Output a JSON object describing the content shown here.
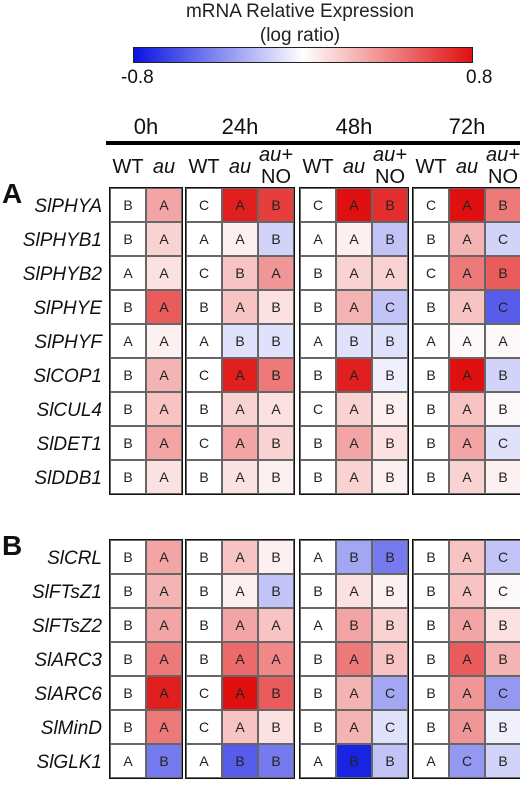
{
  "chart_data": {
    "type": "heatmap",
    "legend": {
      "title_line1": "mRNA Relative Expression",
      "title_line2": "(log ratio)",
      "min_label": "-0.8",
      "max_label": "0.8",
      "range": [
        -0.8,
        0.8
      ],
      "colors": {
        "low": "#0a14e0",
        "mid": "#ffffff",
        "high": "#e01010"
      }
    },
    "timepoints": [
      {
        "label": "0h",
        "columns": [
          "WT",
          "au"
        ]
      },
      {
        "label": "24h",
        "columns": [
          "WT",
          "au",
          "au+ NO"
        ]
      },
      {
        "label": "48h",
        "columns": [
          "WT",
          "au",
          "au+ NO"
        ]
      },
      {
        "label": "72h",
        "columns": [
          "WT",
          "au",
          "au+ NO"
        ]
      }
    ],
    "panels": [
      {
        "label": "A",
        "rows": [
          {
            "gene": "SlPHYA",
            "groups": [
              [
                [
                  0,
                  "B"
                ],
                [
                  0.3,
                  "A"
                ]
              ],
              [
                [
                  0,
                  "C"
                ],
                [
                  0.75,
                  "A"
                ],
                [
                  0.65,
                  "B"
                ]
              ],
              [
                [
                  0,
                  "C"
                ],
                [
                  0.8,
                  "A"
                ],
                [
                  0.7,
                  "B"
                ]
              ],
              [
                [
                  0,
                  "C"
                ],
                [
                  0.8,
                  "A"
                ],
                [
                  0.45,
                  "B"
                ]
              ]
            ]
          },
          {
            "gene": "SlPHYB1",
            "groups": [
              [
                [
                  0,
                  "B"
                ],
                [
                  0.15,
                  "A"
                ]
              ],
              [
                [
                  0,
                  "A"
                ],
                [
                  0.05,
                  "A"
                ],
                [
                  -0.15,
                  "B"
                ]
              ],
              [
                [
                  0,
                  "A"
                ],
                [
                  0.05,
                  "A"
                ],
                [
                  -0.2,
                  "B"
                ]
              ],
              [
                [
                  0,
                  "B"
                ],
                [
                  0.25,
                  "A"
                ],
                [
                  -0.15,
                  "C"
                ]
              ]
            ]
          },
          {
            "gene": "SlPHYB2",
            "groups": [
              [
                [
                  0,
                  "A"
                ],
                [
                  0.1,
                  "A"
                ]
              ],
              [
                [
                  0,
                  "C"
                ],
                [
                  0.2,
                  "B"
                ],
                [
                  0.35,
                  "A"
                ]
              ],
              [
                [
                  0,
                  "B"
                ],
                [
                  0.15,
                  "A"
                ],
                [
                  0.15,
                  "A"
                ]
              ],
              [
                [
                  0,
                  "C"
                ],
                [
                  0.45,
                  "A"
                ],
                [
                  0.55,
                  "B"
                ]
              ]
            ]
          },
          {
            "gene": "SlPHYE",
            "groups": [
              [
                [
                  0,
                  "B"
                ],
                [
                  0.55,
                  "A"
                ]
              ],
              [
                [
                  0,
                  "B"
                ],
                [
                  0.2,
                  "A"
                ],
                [
                  0.1,
                  "B"
                ]
              ],
              [
                [
                  0,
                  "B"
                ],
                [
                  0.25,
                  "A"
                ],
                [
                  -0.2,
                  "C"
                ]
              ],
              [
                [
                  0,
                  "B"
                ],
                [
                  0.2,
                  "A"
                ],
                [
                  -0.55,
                  "C"
                ]
              ]
            ]
          },
          {
            "gene": "SlPHYF",
            "groups": [
              [
                [
                  0,
                  "A"
                ],
                [
                  0.05,
                  "A"
                ]
              ],
              [
                [
                  0,
                  "A"
                ],
                [
                  -0.1,
                  "B"
                ],
                [
                  -0.1,
                  "B"
                ]
              ],
              [
                [
                  0,
                  "A"
                ],
                [
                  -0.1,
                  "B"
                ],
                [
                  -0.1,
                  "B"
                ]
              ],
              [
                [
                  0,
                  "A"
                ],
                [
                  0.02,
                  "A"
                ],
                [
                  0.02,
                  "A"
                ]
              ]
            ]
          },
          {
            "gene": "SlCOP1",
            "groups": [
              [
                [
                  0,
                  "B"
                ],
                [
                  0.25,
                  "A"
                ]
              ],
              [
                [
                  0,
                  "C"
                ],
                [
                  0.75,
                  "A"
                ],
                [
                  0.45,
                  "B"
                ]
              ],
              [
                [
                  0,
                  "B"
                ],
                [
                  0.75,
                  "A"
                ],
                [
                  -0.05,
                  "B"
                ]
              ],
              [
                [
                  0,
                  "B"
                ],
                [
                  0.8,
                  "A"
                ],
                [
                  -0.15,
                  "B"
                ]
              ]
            ]
          },
          {
            "gene": "SlCUL4",
            "groups": [
              [
                [
                  0,
                  "B"
                ],
                [
                  0.2,
                  "A"
                ]
              ],
              [
                [
                  0,
                  "B"
                ],
                [
                  0.15,
                  "A"
                ],
                [
                  0.1,
                  "A"
                ]
              ],
              [
                [
                  0,
                  "C"
                ],
                [
                  0.15,
                  "A"
                ],
                [
                  0.05,
                  "B"
                ]
              ],
              [
                [
                  0,
                  "B"
                ],
                [
                  0.2,
                  "A"
                ],
                [
                  0.02,
                  "B"
                ]
              ]
            ]
          },
          {
            "gene": "SlDET1",
            "groups": [
              [
                [
                  0,
                  "B"
                ],
                [
                  0.3,
                  "A"
                ]
              ],
              [
                [
                  0,
                  "C"
                ],
                [
                  0.3,
                  "A"
                ],
                [
                  0.15,
                  "B"
                ]
              ],
              [
                [
                  0,
                  "B"
                ],
                [
                  0.3,
                  "A"
                ],
                [
                  0.1,
                  "B"
                ]
              ],
              [
                [
                  0,
                  "B"
                ],
                [
                  0.3,
                  "A"
                ],
                [
                  -0.1,
                  "C"
                ]
              ]
            ]
          },
          {
            "gene": "SlDDB1",
            "groups": [
              [
                [
                  0,
                  "B"
                ],
                [
                  0.1,
                  "A"
                ]
              ],
              [
                [
                  0,
                  "B"
                ],
                [
                  0.1,
                  "A"
                ],
                [
                  0.05,
                  "B"
                ]
              ],
              [
                [
                  0,
                  "B"
                ],
                [
                  0.15,
                  "A"
                ],
                [
                  0.05,
                  "B"
                ]
              ],
              [
                [
                  0,
                  "B"
                ],
                [
                  0.15,
                  "A"
                ],
                [
                  0.05,
                  "B"
                ]
              ]
            ]
          }
        ]
      },
      {
        "label": "B",
        "rows": [
          {
            "gene": "SlCRL",
            "groups": [
              [
                [
                  0,
                  "B"
                ],
                [
                  0.3,
                  "A"
                ]
              ],
              [
                [
                  0,
                  "B"
                ],
                [
                  0.2,
                  "A"
                ],
                [
                  0.05,
                  "B"
                ]
              ],
              [
                [
                  0,
                  "A"
                ],
                [
                  -0.3,
                  "B"
                ],
                [
                  -0.45,
                  "B"
                ]
              ],
              [
                [
                  0,
                  "B"
                ],
                [
                  0.2,
                  "A"
                ],
                [
                  -0.2,
                  "C"
                ]
              ]
            ]
          },
          {
            "gene": "SlFTsZ1",
            "groups": [
              [
                [
                  0,
                  "B"
                ],
                [
                  0.25,
                  "A"
                ]
              ],
              [
                [
                  0,
                  "B"
                ],
                [
                  0.05,
                  "A"
                ],
                [
                  -0.2,
                  "B"
                ]
              ],
              [
                [
                  0,
                  "B"
                ],
                [
                  0.1,
                  "A"
                ],
                [
                  0.05,
                  "B"
                ]
              ],
              [
                [
                  0,
                  "B"
                ],
                [
                  0.2,
                  "A"
                ],
                [
                  0.02,
                  "C"
                ]
              ]
            ]
          },
          {
            "gene": "SlFTsZ2",
            "groups": [
              [
                [
                  0,
                  "B"
                ],
                [
                  0.3,
                  "A"
                ]
              ],
              [
                [
                  0,
                  "B"
                ],
                [
                  0.3,
                  "A"
                ],
                [
                  0.2,
                  "A"
                ]
              ],
              [
                [
                  0,
                  "A"
                ],
                [
                  0.3,
                  "B"
                ],
                [
                  0.15,
                  "B"
                ]
              ],
              [
                [
                  0,
                  "B"
                ],
                [
                  0.3,
                  "A"
                ],
                [
                  0.1,
                  "B"
                ]
              ]
            ]
          },
          {
            "gene": "SlARC3",
            "groups": [
              [
                [
                  0,
                  "B"
                ],
                [
                  0.45,
                  "A"
                ]
              ],
              [
                [
                  0,
                  "B"
                ],
                [
                  0.5,
                  "A"
                ],
                [
                  0.4,
                  "A"
                ]
              ],
              [
                [
                  0,
                  "B"
                ],
                [
                  0.45,
                  "A"
                ],
                [
                  0.2,
                  "B"
                ]
              ],
              [
                [
                  0,
                  "B"
                ],
                [
                  0.55,
                  "A"
                ],
                [
                  0.25,
                  "B"
                ]
              ]
            ]
          },
          {
            "gene": "SlARC6",
            "groups": [
              [
                [
                  0,
                  "B"
                ],
                [
                  0.75,
                  "A"
                ]
              ],
              [
                [
                  0,
                  "C"
                ],
                [
                  0.8,
                  "A"
                ],
                [
                  0.55,
                  "B"
                ]
              ],
              [
                [
                  0,
                  "B"
                ],
                [
                  0.25,
                  "A"
                ],
                [
                  -0.3,
                  "C"
                ]
              ],
              [
                [
                  0,
                  "B"
                ],
                [
                  0.35,
                  "A"
                ],
                [
                  -0.35,
                  "C"
                ]
              ]
            ]
          },
          {
            "gene": "SlMinD",
            "groups": [
              [
                [
                  0,
                  "B"
                ],
                [
                  0.45,
                  "A"
                ]
              ],
              [
                [
                  0,
                  "C"
                ],
                [
                  0.2,
                  "A"
                ],
                [
                  0.1,
                  "B"
                ]
              ],
              [
                [
                  0,
                  "B"
                ],
                [
                  0.25,
                  "A"
                ],
                [
                  -0.1,
                  "C"
                ]
              ],
              [
                [
                  0,
                  "B"
                ],
                [
                  0.35,
                  "A"
                ],
                [
                  -0.05,
                  "B"
                ]
              ]
            ]
          },
          {
            "gene": "SlGLK1",
            "groups": [
              [
                [
                  0,
                  "A"
                ],
                [
                  -0.45,
                  "B"
                ]
              ],
              [
                [
                  0,
                  "A"
                ],
                [
                  -0.55,
                  "B"
                ],
                [
                  -0.45,
                  "B"
                ]
              ],
              [
                [
                  0,
                  "A"
                ],
                [
                  -0.75,
                  "B"
                ],
                [
                  -0.2,
                  "B"
                ]
              ],
              [
                [
                  0,
                  "A"
                ],
                [
                  -0.35,
                  "C"
                ],
                [
                  -0.15,
                  "B"
                ]
              ]
            ]
          }
        ]
      }
    ]
  }
}
